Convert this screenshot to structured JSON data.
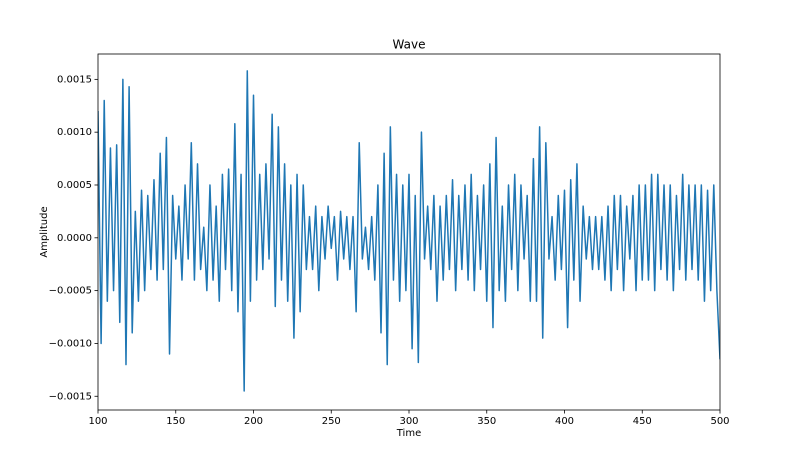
{
  "chart_data": {
    "type": "line",
    "title": "Wave",
    "xlabel": "Time",
    "ylabel": "Amplitude",
    "x": [
      100,
      102,
      104,
      106,
      108,
      110,
      112,
      114,
      116,
      118,
      120,
      122,
      124,
      126,
      128,
      130,
      132,
      134,
      136,
      138,
      140,
      142,
      144,
      146,
      148,
      150,
      152,
      154,
      156,
      158,
      160,
      162,
      164,
      166,
      168,
      170,
      172,
      174,
      176,
      178,
      180,
      182,
      184,
      186,
      188,
      190,
      192,
      194,
      196,
      198,
      200,
      202,
      204,
      206,
      208,
      210,
      212,
      214,
      216,
      218,
      220,
      222,
      224,
      226,
      228,
      230,
      232,
      234,
      236,
      238,
      240,
      242,
      244,
      246,
      248,
      250,
      252,
      254,
      256,
      258,
      260,
      262,
      264,
      266,
      268,
      270,
      272,
      274,
      276,
      278,
      280,
      282,
      284,
      286,
      288,
      290,
      292,
      294,
      296,
      298,
      300,
      302,
      304,
      306,
      308,
      310,
      312,
      314,
      316,
      318,
      320,
      322,
      324,
      326,
      328,
      330,
      332,
      334,
      336,
      338,
      340,
      342,
      344,
      346,
      348,
      350,
      352,
      354,
      356,
      358,
      360,
      362,
      364,
      366,
      368,
      370,
      372,
      374,
      376,
      378,
      380,
      382,
      384,
      386,
      388,
      390,
      392,
      394,
      396,
      398,
      400,
      402,
      404,
      406,
      408,
      410,
      412,
      414,
      416,
      418,
      420,
      422,
      424,
      426,
      428,
      430,
      432,
      434,
      436,
      438,
      440,
      442,
      444,
      446,
      448,
      450,
      452,
      454,
      456,
      458,
      460,
      462,
      464,
      466,
      468,
      470,
      472,
      474,
      476,
      478,
      480,
      482,
      484,
      486,
      488,
      490,
      492,
      494,
      496,
      498,
      500
    ],
    "series": [
      {
        "name": "Wave",
        "color": "#1f77b4",
        "values": [
          0.0012,
          -0.001,
          0.0013,
          -0.0006,
          0.00085,
          -0.0005,
          0.00088,
          -0.0008,
          0.0015,
          -0.0012,
          0.00143,
          -0.0009,
          0.00025,
          -0.0006,
          0.00045,
          -0.0005,
          0.0004,
          -0.0003,
          0.00055,
          -0.0004,
          0.0008,
          -0.0003,
          0.00095,
          -0.0011,
          0.0004,
          -0.0002,
          0.0003,
          -0.0004,
          0.0005,
          -0.0002,
          0.0009,
          -0.0004,
          0.0007,
          -0.0003,
          0.0001,
          -0.0005,
          0.0005,
          -0.0004,
          0.0003,
          -0.0006,
          0.0006,
          -0.0003,
          0.00065,
          -0.0005,
          0.00108,
          -0.0007,
          0.0006,
          -0.00145,
          0.00158,
          -0.0006,
          0.00135,
          -0.0004,
          0.0006,
          -0.0003,
          0.0007,
          -0.0002,
          0.00117,
          -0.00065,
          0.00105,
          -0.0004,
          0.0007,
          -0.0006,
          0.0005,
          -0.00095,
          0.0006,
          -0.0007,
          0.0005,
          -0.0003,
          0.0002,
          -0.0003,
          0.0003,
          -0.0005,
          0.0002,
          -0.0002,
          0.0003,
          -0.0001,
          0.0002,
          -0.0004,
          0.00025,
          -0.0002,
          0.0002,
          -0.0003,
          0.0002,
          -0.0007,
          0.0009,
          -0.0002,
          0.0001,
          -0.0003,
          0.0002,
          -0.0004,
          0.0005,
          -0.0009,
          0.0008,
          -0.0012,
          0.00105,
          -0.0004,
          0.0006,
          -0.0006,
          0.0005,
          -0.0005,
          0.0006,
          -0.00105,
          0.0004,
          -0.00118,
          0.001,
          -0.0002,
          0.0003,
          -0.0003,
          0.0004,
          -0.0006,
          0.0003,
          -0.0004,
          0.0004,
          -0.0003,
          0.00055,
          -0.0005,
          0.0004,
          -0.0003,
          0.0005,
          -0.0004,
          0.0006,
          -0.0005,
          0.0004,
          -0.0003,
          0.0005,
          -0.0006,
          0.0007,
          -0.00085,
          0.00095,
          -0.0005,
          0.0003,
          -0.0006,
          0.0005,
          -0.0003,
          0.0006,
          -0.0005,
          0.0005,
          -0.0002,
          0.0004,
          -0.0006,
          0.00075,
          -0.0006,
          0.00105,
          -0.00095,
          0.0009,
          -0.0002,
          0.0002,
          -0.0004,
          0.0004,
          -0.0003,
          0.00045,
          -0.00085,
          0.00055,
          -0.0004,
          0.0007,
          -0.0006,
          0.0003,
          -0.0002,
          0.0002,
          -0.0003,
          0.0002,
          -0.0003,
          0.0002,
          -0.0004,
          0.0003,
          -0.0005,
          0.0004,
          -0.0003,
          0.0004,
          -0.0005,
          0.0003,
          -0.0002,
          0.0004,
          -0.0005,
          0.0005,
          -0.0004,
          0.0005,
          -0.0004,
          0.0006,
          -0.0005,
          0.0006,
          -0.0003,
          0.0005,
          -0.0004,
          0.0005,
          -0.0005,
          0.0004,
          -0.0003,
          0.0006,
          -0.0004,
          0.0005,
          -0.0003,
          0.0005,
          -0.0004,
          0.0005,
          -0.0006,
          0.00045,
          -0.0005,
          0.0005,
          -0.0005,
          -0.00115
        ]
      }
    ],
    "xlim": [
      100,
      500
    ],
    "xticks": [
      100,
      150,
      200,
      250,
      300,
      350,
      400,
      450,
      500
    ],
    "ylim": [
      -0.00163,
      0.00174
    ],
    "yticks": [
      {
        "value": -0.0015,
        "label": "−0.0015"
      },
      {
        "value": -0.001,
        "label": "−0.0010"
      },
      {
        "value": -0.0005,
        "label": "−0.0005"
      },
      {
        "value": 0,
        "label": "0.0000"
      },
      {
        "value": 0.0005,
        "label": "0.0005"
      },
      {
        "value": 0.001,
        "label": "0.0010"
      },
      {
        "value": 0.0015,
        "label": "0.0015"
      }
    ],
    "grid": false
  }
}
